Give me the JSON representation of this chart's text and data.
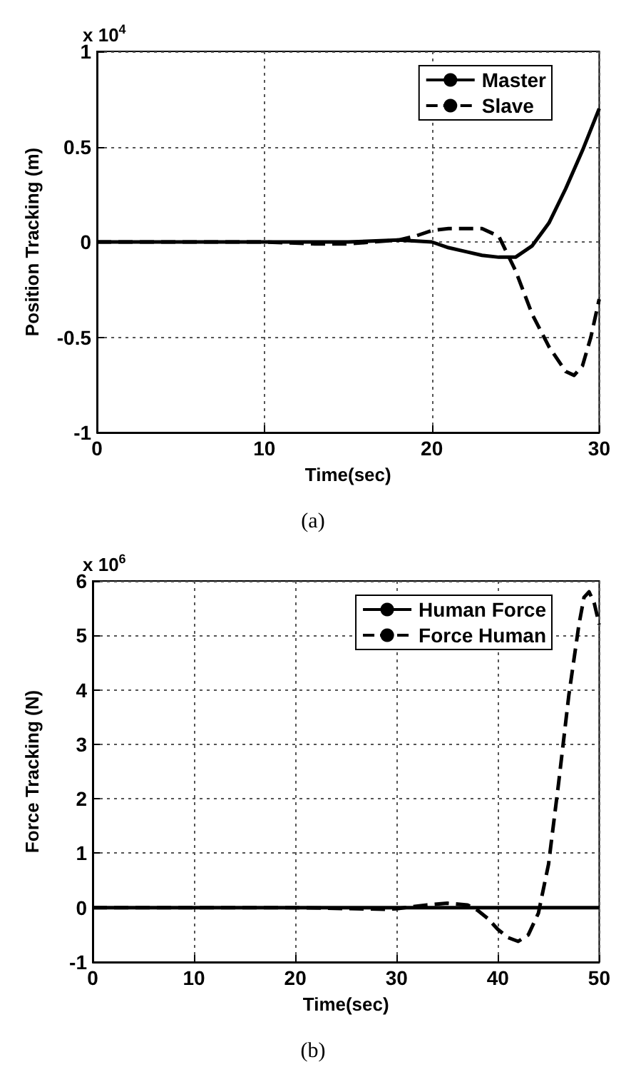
{
  "chart_data": [
    {
      "type": "line",
      "xlabel": "Time(sec)",
      "ylabel": "Position Tracking (m)",
      "xlim": [
        0,
        30
      ],
      "xticks": [
        0,
        10,
        20,
        30
      ],
      "ylim": [
        -1,
        1
      ],
      "yticks": [
        -1,
        -0.5,
        0,
        0.5,
        1
      ],
      "grid": true,
      "legend": "top right",
      "marker": "none",
      "annotations": [
        "x 10$^{4}$",
        "(a)"
      ],
      "series": [
        {
          "name": "Master",
          "color": "#000000",
          "line_style": "solid",
          "x": [
            0,
            5,
            10,
            15,
            18,
            20,
            21,
            22,
            23,
            24,
            25,
            26,
            27,
            28,
            29,
            30
          ],
          "values": [
            0,
            0,
            0,
            0,
            0.01,
            0,
            -0.03,
            -0.05,
            -0.07,
            -0.08,
            -0.08,
            -0.02,
            0.1,
            0.28,
            0.48,
            0.7
          ]
        },
        {
          "name": "Slave",
          "color": "#000000",
          "line_style": "dashed",
          "x": [
            0,
            5,
            10,
            13,
            15,
            18,
            19,
            20,
            21,
            22,
            23,
            24,
            25,
            26,
            27,
            28,
            28.5,
            29,
            29.5,
            30
          ],
          "values": [
            0,
            0,
            0,
            -0.01,
            -0.01,
            0.01,
            0.03,
            0.06,
            0.07,
            0.07,
            0.07,
            0.03,
            -0.15,
            -0.38,
            -0.55,
            -0.68,
            -0.7,
            -0.65,
            -0.5,
            -0.3
          ]
        }
      ]
    },
    {
      "type": "line",
      "xlabel": "Time(sec)",
      "ylabel": "Force Tracking (N)",
      "xlim": [
        0,
        50
      ],
      "xticks": [
        0,
        10,
        20,
        30,
        40,
        50
      ],
      "ylim": [
        -1,
        6
      ],
      "yticks": [
        -1,
        0,
        1,
        2,
        3,
        4,
        5,
        6
      ],
      "grid": true,
      "legend": "top right",
      "marker": "none",
      "annotations": [
        "x 10$^{6}$",
        "(b)"
      ],
      "series": [
        {
          "name": "Human Force",
          "color": "#000000",
          "line_style": "solid",
          "x": [
            0,
            50
          ],
          "values": [
            0,
            0
          ]
        },
        {
          "name": "Force Human",
          "color": "#000000",
          "line_style": "dashed",
          "x": [
            0,
            10,
            20,
            29,
            30,
            33,
            35,
            37,
            38,
            39,
            40,
            41,
            42,
            43,
            44,
            45,
            46,
            47,
            48,
            48.5,
            49,
            49.5,
            50
          ],
          "values": [
            0,
            0,
            0,
            -0.03,
            -0.02,
            0.05,
            0.08,
            0.05,
            -0.05,
            -0.2,
            -0.4,
            -0.55,
            -0.62,
            -0.5,
            -0.1,
            0.8,
            2.3,
            3.9,
            5.2,
            5.7,
            5.8,
            5.6,
            5.2
          ]
        }
      ]
    }
  ]
}
